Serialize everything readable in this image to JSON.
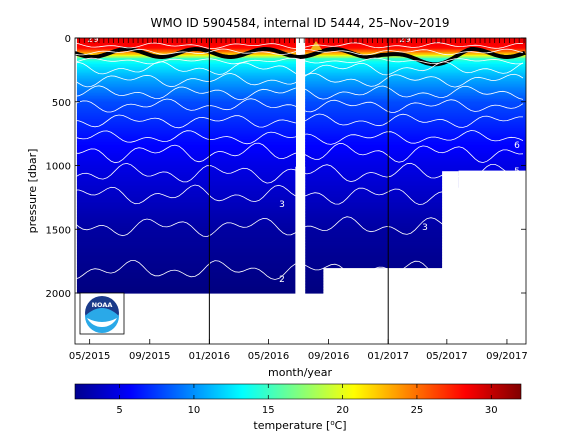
{
  "chart_data": {
    "type": "heatmap",
    "title": "WMO ID 5904584, internal ID 5444, 25–Nov–2019",
    "xlabel": "month/year",
    "ylabel": "pressure [dbar]",
    "x_ticks": [
      "05/2015",
      "09/2015",
      "01/2016",
      "05/2016",
      "09/2016",
      "01/2017",
      "05/2017",
      "09/2017"
    ],
    "y_ticks": [
      "0",
      "500",
      "1000",
      "1500",
      "2000"
    ],
    "y_tick_values": [
      0,
      500,
      1000,
      1500,
      2000
    ],
    "ylim": [
      0,
      2400
    ],
    "xlim": [
      "2015-04-01",
      "2017-10-10"
    ],
    "y_reversed": true,
    "colorbar": {
      "label": "temperature [°C]",
      "label_parts": [
        "temperature [",
        "o",
        "C]"
      ],
      "ticks": [
        "5",
        "10",
        "15",
        "20",
        "25",
        "30"
      ],
      "tick_values": [
        5,
        10,
        15,
        20,
        25,
        30
      ],
      "range": [
        2,
        32
      ],
      "colormap": "jet"
    },
    "year_dividers": [
      "2016-01-01",
      "2017-01-01"
    ],
    "contour_labels": [
      "29",
      "29",
      "6",
      "5",
      "5",
      "3",
      "3",
      "2"
    ],
    "data_gaps": [
      {
        "start": "2016-06-25",
        "end": "2016-07-15",
        "from_pressure": 1010,
        "to_pressure": 2400
      },
      {
        "start": "2017-05-25",
        "end": "2017-10-10",
        "from_pressure": 1040,
        "to_pressure": 2400
      }
    ],
    "profile_depth_max": [
      {
        "start": "2015-04-05",
        "end": "2016-06-25",
        "max_pressure": 2000
      },
      {
        "start": "2016-07-15",
        "end": "2016-08-20",
        "max_pressure": 2000
      },
      {
        "start": "2016-08-20",
        "end": "2017-04-20",
        "max_pressure": 1800
      },
      {
        "start": "2017-04-20",
        "end": "2017-05-25",
        "max_pressure": 1040
      },
      {
        "start": "2017-05-25",
        "end": "2017-10-10",
        "max_pressure": 1170
      }
    ],
    "temperature_profile": [
      {
        "pressure": 0,
        "temperature": 29
      },
      {
        "pressure": 80,
        "temperature": 28
      },
      {
        "pressure": 130,
        "temperature": 22
      },
      {
        "pressure": 160,
        "temperature": 15
      },
      {
        "pressure": 200,
        "temperature": 13
      },
      {
        "pressure": 300,
        "temperature": 11
      },
      {
        "pressure": 500,
        "temperature": 8
      },
      {
        "pressure": 800,
        "temperature": 6
      },
      {
        "pressure": 1000,
        "temperature": 5
      },
      {
        "pressure": 1500,
        "temperature": 3
      },
      {
        "pressure": 2000,
        "temperature": 2
      }
    ]
  },
  "logo": {
    "text": "NOAA",
    "icon": "noaa-logo-icon"
  }
}
